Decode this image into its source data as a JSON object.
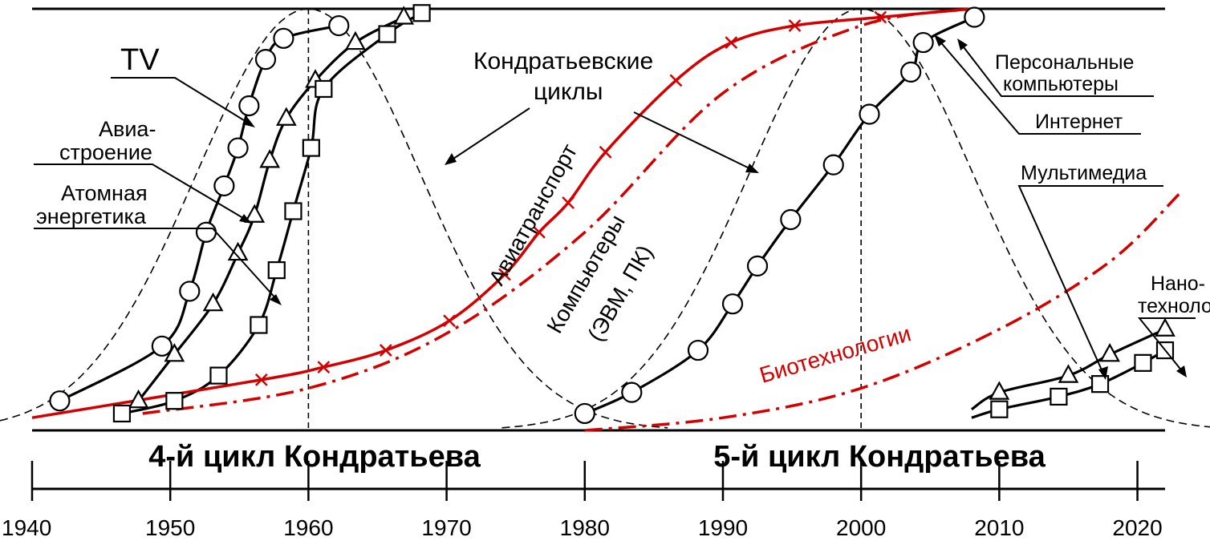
{
  "chart_data": {
    "type": "line",
    "title": "",
    "xlabel": "",
    "ylabel": "",
    "xlim": [
      1940,
      2022
    ],
    "ylim": [
      0,
      1
    ],
    "x_ticks": [
      "1940",
      "1950",
      "1960",
      "1970",
      "1980",
      "1990",
      "2000",
      "2010",
      "2020"
    ],
    "x_tick_values": [
      1940,
      1950,
      1960,
      1970,
      1980,
      1990,
      2000,
      2010,
      2020
    ],
    "grid": false,
    "vlines": [
      1960,
      2000
    ],
    "cycles": [
      {
        "label": "4-й цикл Кондратьева",
        "start": 1940,
        "end": 1980
      },
      {
        "label": "5-й цикл Кондратьева",
        "start": 1980,
        "end": 2020
      }
    ],
    "annotations": {
      "tv": "TV",
      "aviation_1": "Авиа-",
      "aviation_2": "строение",
      "nuclear_1": "Атомная",
      "nuclear_2": "энергетика",
      "kondratiev_1": "Кондратьевские",
      "kondratiev_2": "циклы",
      "air_transport": "Авиатранспорт",
      "computers_1": "Компьютеры",
      "computers_2": "(ЭВМ, ПК)",
      "biotech": "Биотехнологии",
      "pc_1": "Персональные",
      "pc_2": "компьютеры",
      "internet": "Интернет",
      "multimedia": "Мультимедиа",
      "nano_1": "Нано-",
      "nano_2": "технологии"
    },
    "series": [
      {
        "key": "tv",
        "name": "TV",
        "style": "solid",
        "color": "#000000",
        "marker": "circle",
        "x": [
          1942,
          1949.4,
          1951.4,
          1952.6,
          1953.9,
          1954.9,
          1955.7,
          1956.9,
          1958.2,
          1962.2
        ],
        "y": [
          0.07,
          0.2,
          0.33,
          0.47,
          0.58,
          0.67,
          0.77,
          0.88,
          0.93,
          0.96
        ]
      },
      {
        "key": "aviation_building",
        "name": "Авиастроение",
        "style": "solid",
        "color": "#000000",
        "marker": "triangle",
        "x": [
          1947.7,
          1950.3,
          1953.1,
          1954.9,
          1956.1,
          1957.2,
          1958.4,
          1960.5,
          1963.4,
          1966.9
        ],
        "y": [
          0.07,
          0.18,
          0.3,
          0.42,
          0.51,
          0.64,
          0.74,
          0.83,
          0.92,
          0.98
        ]
      },
      {
        "key": "nuclear",
        "name": "Атомная энергетика",
        "style": "solid",
        "color": "#000000",
        "marker": "square",
        "x": [
          1946.5,
          1950.3,
          1953.5,
          1956.4,
          1957.7,
          1958.9,
          1960.2,
          1961.1,
          1965.7,
          1968.2
        ],
        "y": [
          0.04,
          0.07,
          0.13,
          0.25,
          0.38,
          0.52,
          0.67,
          0.81,
          0.94,
          0.99
        ]
      },
      {
        "key": "air_transport",
        "name": "Авиатранспорт",
        "style": "solid",
        "color": "#d40000",
        "marker": "cross",
        "x": [
          1940,
          1956.6,
          1961.1,
          1965.6,
          1970.2,
          1974.2,
          1976.7,
          1978.8,
          1981.5,
          1986.6,
          1990.6,
          1995.2,
          2001.4,
          2008
        ],
        "y": [
          0.03,
          0.12,
          0.15,
          0.19,
          0.26,
          0.37,
          0.47,
          0.54,
          0.66,
          0.83,
          0.92,
          0.96,
          0.98,
          1.0
        ]
      },
      {
        "key": "computers",
        "name": "Компьютеры (ЭВМ, ПК)",
        "style": "dashdot",
        "color": "#d40000",
        "marker": "none",
        "x": [
          1948,
          1960,
          1970,
          1980,
          1990,
          2000,
          2008
        ],
        "y": [
          0.04,
          0.1,
          0.23,
          0.47,
          0.8,
          0.96,
          1.0
        ]
      },
      {
        "key": "computers_5",
        "name": "Персональные компьютеры",
        "style": "solid",
        "color": "#000000",
        "marker": "circle",
        "x": [
          1980,
          1983.4,
          1988.2,
          1990.7,
          1992.5,
          1994.9,
          1998,
          2000.6,
          2003.6,
          2004.5,
          2008.2
        ],
        "y": [
          0.04,
          0.09,
          0.19,
          0.3,
          0.39,
          0.5,
          0.63,
          0.75,
          0.85,
          0.92,
          0.98
        ]
      },
      {
        "key": "biotech",
        "name": "Биотехнологии",
        "style": "dashdot",
        "color": "#d40000",
        "marker": "none",
        "x": [
          1980,
          1990,
          2000,
          2010,
          2018,
          2023
        ],
        "y": [
          0.0,
          0.03,
          0.1,
          0.24,
          0.4,
          0.56
        ]
      },
      {
        "key": "multimedia",
        "name": "Мультимедиа",
        "style": "solid",
        "color": "#000000",
        "marker": "triangle",
        "x": [
          2008,
          2010,
          2015,
          2018,
          2022
        ],
        "y": [
          0.05,
          0.09,
          0.13,
          0.18,
          0.24
        ]
      },
      {
        "key": "nano",
        "name": "Нанотехнологии",
        "style": "solid",
        "color": "#000000",
        "marker": "square",
        "x": [
          2008,
          2010,
          2014.3,
          2017.3,
          2020.4,
          2022
        ],
        "y": [
          0.03,
          0.05,
          0.08,
          0.11,
          0.16,
          0.19
        ]
      }
    ]
  }
}
